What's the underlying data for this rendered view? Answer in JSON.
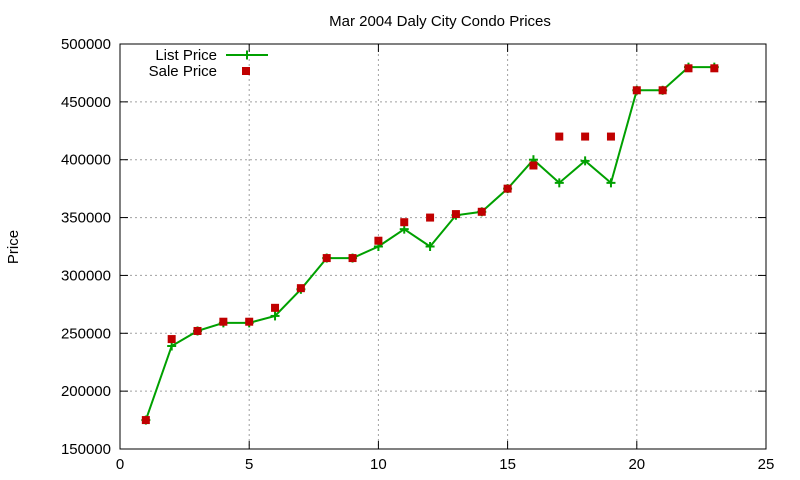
{
  "chart_data": {
    "type": "line",
    "title": "Mar 2004 Daly City Condo Prices",
    "xlabel": "",
    "ylabel": "Price",
    "xlim": [
      0,
      25
    ],
    "ylim": [
      150000,
      500000
    ],
    "xticks": [
      0,
      5,
      10,
      15,
      20,
      25
    ],
    "yticks": [
      150000,
      200000,
      250000,
      300000,
      350000,
      400000,
      450000,
      500000
    ],
    "grid": true,
    "legend_position": "top-left",
    "series": [
      {
        "name": "List Price",
        "style": "linespoints",
        "marker": "plus",
        "color": "#00a000",
        "x": [
          1,
          2,
          3,
          4,
          5,
          6,
          7,
          8,
          9,
          10,
          11,
          12,
          13,
          14,
          15,
          16,
          17,
          18,
          19,
          20,
          21,
          22,
          23
        ],
        "y": [
          175000,
          239000,
          252000,
          259000,
          259000,
          265000,
          288000,
          315000,
          315000,
          325000,
          340000,
          325000,
          352000,
          355000,
          375000,
          400000,
          380000,
          399000,
          380000,
          460000,
          460000,
          480000,
          480000
        ]
      },
      {
        "name": "Sale Price",
        "style": "points",
        "marker": "square",
        "color": "#c00000",
        "x": [
          1,
          2,
          3,
          4,
          5,
          6,
          7,
          8,
          9,
          10,
          11,
          12,
          13,
          14,
          15,
          16,
          17,
          18,
          19,
          20,
          21,
          22,
          23
        ],
        "y": [
          175000,
          245000,
          252000,
          260000,
          260000,
          272000,
          289000,
          315000,
          315000,
          330000,
          346000,
          350000,
          353000,
          355000,
          375000,
          395000,
          420000,
          420000,
          420000,
          460000,
          460000,
          479000,
          479000
        ]
      }
    ]
  }
}
